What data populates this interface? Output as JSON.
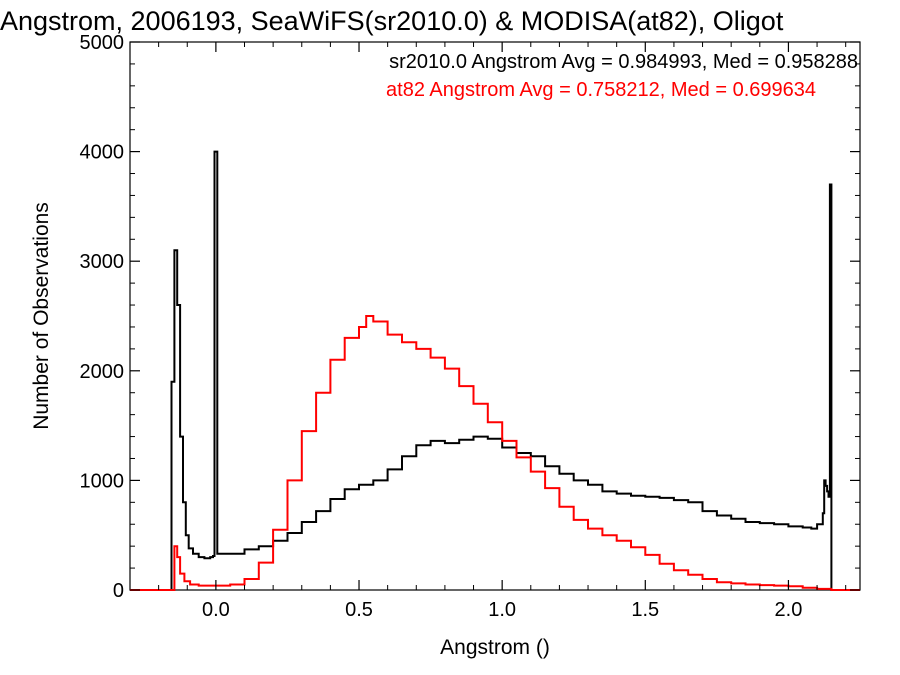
{
  "chart_data": {
    "type": "line",
    "title": "Angstrom, 2006193, SeaWiFS(sr2010.0) & MODISA(at82), Oligot",
    "xlabel": "Angstrom ()",
    "ylabel": "Number of Observations",
    "xlim": [
      -0.3,
      2.25
    ],
    "ylim": [
      0,
      5000
    ],
    "xticks": [
      {
        "value": 0.0,
        "label": "0.0"
      },
      {
        "value": 0.5,
        "label": "0.5"
      },
      {
        "value": 1.0,
        "label": "1.0"
      },
      {
        "value": 1.5,
        "label": "1.5"
      },
      {
        "value": 2.0,
        "label": "2.0"
      }
    ],
    "yticks": [
      {
        "value": 0,
        "label": "0"
      },
      {
        "value": 1000,
        "label": "1000"
      },
      {
        "value": 2000,
        "label": "2000"
      },
      {
        "value": 3000,
        "label": "3000"
      },
      {
        "value": 4000,
        "label": "4000"
      },
      {
        "value": 5000,
        "label": "5000"
      }
    ],
    "grid": false,
    "legend_position": "top-right",
    "legend": [
      {
        "text": "sr2010.0 Angstrom Avg = 0.984993, Med = 0.958288",
        "color": "#000000"
      },
      {
        "text": "at82 Angstrom Avg = 0.758212, Med = 0.699634",
        "color": "#ff0000"
      }
    ],
    "series": [
      {
        "color": "#000000",
        "style": "step",
        "points": [
          [
            -0.3,
            0
          ],
          [
            -0.16,
            0
          ],
          [
            -0.155,
            1900
          ],
          [
            -0.145,
            3100
          ],
          [
            -0.135,
            2600
          ],
          [
            -0.125,
            1400
          ],
          [
            -0.115,
            800
          ],
          [
            -0.105,
            500
          ],
          [
            -0.095,
            380
          ],
          [
            -0.08,
            330
          ],
          [
            -0.06,
            300
          ],
          [
            -0.04,
            290
          ],
          [
            -0.02,
            300
          ],
          [
            -0.01,
            310
          ],
          [
            -0.005,
            4000
          ],
          [
            0.005,
            330
          ],
          [
            0.05,
            330
          ],
          [
            0.1,
            370
          ],
          [
            0.15,
            400
          ],
          [
            0.2,
            450
          ],
          [
            0.25,
            520
          ],
          [
            0.3,
            620
          ],
          [
            0.35,
            720
          ],
          [
            0.4,
            830
          ],
          [
            0.45,
            920
          ],
          [
            0.5,
            960
          ],
          [
            0.55,
            1000
          ],
          [
            0.6,
            1100
          ],
          [
            0.65,
            1220
          ],
          [
            0.7,
            1320
          ],
          [
            0.75,
            1360
          ],
          [
            0.8,
            1340
          ],
          [
            0.85,
            1370
          ],
          [
            0.9,
            1400
          ],
          [
            0.95,
            1380
          ],
          [
            1.0,
            1300
          ],
          [
            1.05,
            1250
          ],
          [
            1.1,
            1220
          ],
          [
            1.15,
            1130
          ],
          [
            1.2,
            1060
          ],
          [
            1.25,
            1000
          ],
          [
            1.3,
            960
          ],
          [
            1.35,
            900
          ],
          [
            1.4,
            880
          ],
          [
            1.45,
            860
          ],
          [
            1.5,
            850
          ],
          [
            1.55,
            840
          ],
          [
            1.6,
            820
          ],
          [
            1.65,
            800
          ],
          [
            1.7,
            720
          ],
          [
            1.75,
            680
          ],
          [
            1.8,
            650
          ],
          [
            1.85,
            620
          ],
          [
            1.9,
            610
          ],
          [
            1.95,
            600
          ],
          [
            2.0,
            580
          ],
          [
            2.05,
            570
          ],
          [
            2.08,
            560
          ],
          [
            2.1,
            600
          ],
          [
            2.12,
            700
          ],
          [
            2.125,
            1000
          ],
          [
            2.13,
            950
          ],
          [
            2.135,
            900
          ],
          [
            2.14,
            850
          ],
          [
            2.145,
            3700
          ],
          [
            2.15,
            0
          ],
          [
            2.25,
            0
          ]
        ]
      },
      {
        "color": "#ff0000",
        "style": "step",
        "points": [
          [
            -0.3,
            0
          ],
          [
            -0.15,
            0
          ],
          [
            -0.145,
            400
          ],
          [
            -0.135,
            300
          ],
          [
            -0.125,
            150
          ],
          [
            -0.11,
            80
          ],
          [
            -0.09,
            50
          ],
          [
            -0.06,
            40
          ],
          [
            0.0,
            40
          ],
          [
            0.05,
            50
          ],
          [
            0.1,
            100
          ],
          [
            0.15,
            250
          ],
          [
            0.2,
            550
          ],
          [
            0.25,
            1000
          ],
          [
            0.3,
            1450
          ],
          [
            0.35,
            1800
          ],
          [
            0.4,
            2100
          ],
          [
            0.45,
            2300
          ],
          [
            0.5,
            2400
          ],
          [
            0.525,
            2500
          ],
          [
            0.55,
            2450
          ],
          [
            0.6,
            2330
          ],
          [
            0.65,
            2260
          ],
          [
            0.7,
            2200
          ],
          [
            0.75,
            2120
          ],
          [
            0.8,
            2020
          ],
          [
            0.85,
            1860
          ],
          [
            0.9,
            1700
          ],
          [
            0.95,
            1530
          ],
          [
            1.0,
            1360
          ],
          [
            1.05,
            1210
          ],
          [
            1.1,
            1080
          ],
          [
            1.15,
            930
          ],
          [
            1.2,
            760
          ],
          [
            1.25,
            640
          ],
          [
            1.3,
            560
          ],
          [
            1.35,
            500
          ],
          [
            1.4,
            450
          ],
          [
            1.45,
            390
          ],
          [
            1.5,
            320
          ],
          [
            1.55,
            240
          ],
          [
            1.6,
            180
          ],
          [
            1.65,
            140
          ],
          [
            1.7,
            100
          ],
          [
            1.75,
            70
          ],
          [
            1.8,
            60
          ],
          [
            1.85,
            50
          ],
          [
            1.9,
            45
          ],
          [
            1.95,
            40
          ],
          [
            2.0,
            35
          ],
          [
            2.05,
            20
          ],
          [
            2.1,
            10
          ],
          [
            2.15,
            0
          ],
          [
            2.25,
            0
          ]
        ]
      }
    ]
  }
}
